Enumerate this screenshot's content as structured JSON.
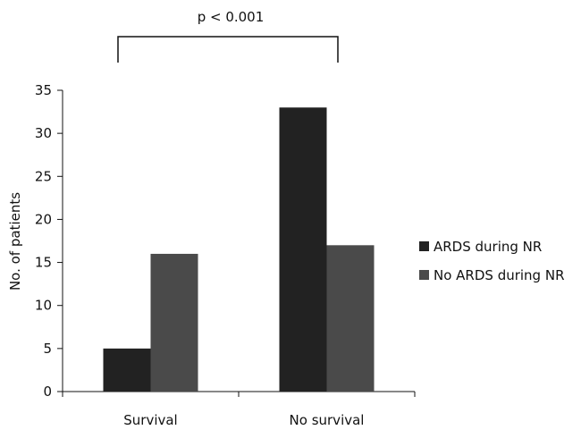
{
  "chart_data": {
    "type": "bar",
    "categories": [
      "Survival",
      "No survival"
    ],
    "series": [
      {
        "name": "ARDS during NR",
        "values": [
          5,
          33
        ],
        "color": "#222222"
      },
      {
        "name": "No ARDS during NR",
        "values": [
          16,
          17
        ],
        "color": "#4a4a4a"
      }
    ],
    "xlabel": "",
    "ylabel": "No. of patients",
    "ylim": [
      0,
      35
    ],
    "yticks": [
      0,
      5,
      10,
      15,
      20,
      25,
      30,
      35
    ],
    "grid": false,
    "legend_position": "right",
    "annotation": "p  < 0.001"
  }
}
